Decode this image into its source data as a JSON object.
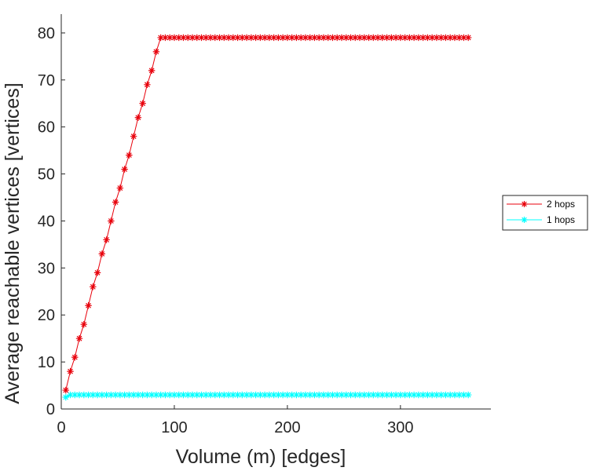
{
  "chart_data": {
    "type": "line",
    "title": "",
    "xlabel": "Volume (m) [edges]",
    "ylabel": "Average reachable vertices [vertices]",
    "xlim": [
      0,
      380
    ],
    "ylim": [
      0,
      84
    ],
    "xticks": [
      0,
      100,
      200,
      300
    ],
    "yticks": [
      0,
      10,
      20,
      30,
      40,
      50,
      60,
      70,
      80
    ],
    "grid": false,
    "legend_position": "right",
    "series": [
      {
        "name": "2 hops",
        "color": "#e8000b",
        "marker": "asterisk",
        "x": [
          4,
          8,
          12,
          16,
          20,
          24,
          28,
          32,
          36,
          40,
          44,
          48,
          52,
          56,
          60,
          64,
          68,
          72,
          76,
          80,
          84,
          88,
          92,
          96,
          100,
          104,
          108,
          112,
          116,
          120,
          124,
          128,
          132,
          136,
          140,
          144,
          148,
          152,
          156,
          160,
          164,
          168,
          172,
          176,
          180,
          184,
          188,
          192,
          196,
          200,
          204,
          208,
          212,
          216,
          220,
          224,
          228,
          232,
          236,
          240,
          244,
          248,
          252,
          256,
          260,
          264,
          268,
          272,
          276,
          280,
          284,
          288,
          292,
          296,
          300,
          304,
          308,
          312,
          316,
          320,
          324,
          328,
          332,
          336,
          340,
          344,
          348,
          352,
          356,
          360
        ],
        "y": [
          4,
          8,
          11,
          15,
          18,
          22,
          26,
          29,
          33,
          36,
          40,
          44,
          47,
          51,
          54,
          58,
          62,
          65,
          69,
          72,
          76,
          79,
          79,
          79,
          79,
          79,
          79,
          79,
          79,
          79,
          79,
          79,
          79,
          79,
          79,
          79,
          79,
          79,
          79,
          79,
          79,
          79,
          79,
          79,
          79,
          79,
          79,
          79,
          79,
          79,
          79,
          79,
          79,
          79,
          79,
          79,
          79,
          79,
          79,
          79,
          79,
          79,
          79,
          79,
          79,
          79,
          79,
          79,
          79,
          79,
          79,
          79,
          79,
          79,
          79,
          79,
          79,
          79,
          79,
          79,
          79,
          79,
          79,
          79,
          79,
          79,
          79,
          79,
          79,
          79
        ]
      },
      {
        "name": "1 hops",
        "color": "#00ffff",
        "marker": "asterisk",
        "x": [
          4,
          8,
          12,
          16,
          20,
          24,
          28,
          32,
          36,
          40,
          44,
          48,
          52,
          56,
          60,
          64,
          68,
          72,
          76,
          80,
          84,
          88,
          92,
          96,
          100,
          104,
          108,
          112,
          116,
          120,
          124,
          128,
          132,
          136,
          140,
          144,
          148,
          152,
          156,
          160,
          164,
          168,
          172,
          176,
          180,
          184,
          188,
          192,
          196,
          200,
          204,
          208,
          212,
          216,
          220,
          224,
          228,
          232,
          236,
          240,
          244,
          248,
          252,
          256,
          260,
          264,
          268,
          272,
          276,
          280,
          284,
          288,
          292,
          296,
          300,
          304,
          308,
          312,
          316,
          320,
          324,
          328,
          332,
          336,
          340,
          344,
          348,
          352,
          356,
          360
        ],
        "y": [
          2.5,
          3,
          3,
          3,
          3,
          3,
          3,
          3,
          3,
          3,
          3,
          3,
          3,
          3,
          3,
          3,
          3,
          3,
          3,
          3,
          3,
          3,
          3,
          3,
          3,
          3,
          3,
          3,
          3,
          3,
          3,
          3,
          3,
          3,
          3,
          3,
          3,
          3,
          3,
          3,
          3,
          3,
          3,
          3,
          3,
          3,
          3,
          3,
          3,
          3,
          3,
          3,
          3,
          3,
          3,
          3,
          3,
          3,
          3,
          3,
          3,
          3,
          3,
          3,
          3,
          3,
          3,
          3,
          3,
          3,
          3,
          3,
          3,
          3,
          3,
          3,
          3,
          3,
          3,
          3,
          3,
          3,
          3,
          3,
          3,
          3,
          3,
          3,
          3,
          3
        ]
      }
    ]
  }
}
